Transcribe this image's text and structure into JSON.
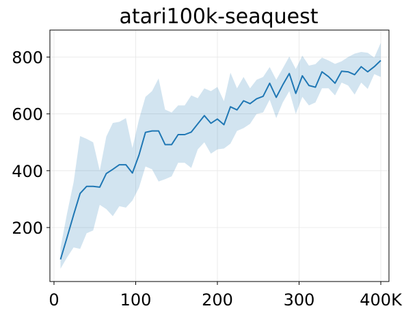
{
  "chart_data": {
    "type": "line",
    "title": "atari100k-seaquest",
    "xlabel": "",
    "ylabel": "",
    "xlim": [
      -5,
      410
    ],
    "ylim": [
      10,
      895
    ],
    "grid": true,
    "x_ticks": [
      {
        "value": 0,
        "label": "0"
      },
      {
        "value": 100,
        "label": "100"
      },
      {
        "value": 200,
        "label": "200"
      },
      {
        "value": 300,
        "label": "300"
      },
      {
        "value": 400,
        "label": "400K"
      }
    ],
    "y_ticks": [
      {
        "value": 200,
        "label": "200"
      },
      {
        "value": 400,
        "label": "400"
      },
      {
        "value": 600,
        "label": "600"
      },
      {
        "value": 800,
        "label": "800"
      }
    ],
    "colors": {
      "line": "#1f77b4",
      "band": "#1f77b4",
      "band_opacity": 0.2
    },
    "series": [
      {
        "x": [
          8,
          16,
          24,
          32,
          40,
          48,
          56,
          64,
          72,
          80,
          88,
          96,
          104,
          112,
          120,
          128,
          136,
          144,
          152,
          160,
          168,
          176,
          184,
          192,
          200,
          208,
          216,
          224,
          232,
          240,
          248,
          256,
          264,
          272,
          280,
          288,
          296,
          304,
          312,
          320,
          328,
          336,
          344,
          352,
          360,
          368,
          376,
          384,
          392,
          400
        ],
        "y": [
          88,
          165,
          245,
          320,
          345,
          345,
          342,
          390,
          405,
          421,
          421,
          392,
          455,
          535,
          540,
          540,
          492,
          492,
          527,
          527,
          536,
          565,
          594,
          567,
          582,
          562,
          625,
          614,
          646,
          636,
          653,
          662,
          708,
          658,
          702,
          742,
          672,
          734,
          700,
          694,
          748,
          731,
          708,
          750,
          748,
          738,
          766,
          748,
          766,
          788
        ],
        "lower": [
          55,
          95,
          130,
          125,
          180,
          190,
          280,
          265,
          240,
          275,
          270,
          295,
          340,
          415,
          405,
          362,
          370,
          380,
          428,
          428,
          410,
          475,
          500,
          460,
          475,
          478,
          495,
          540,
          550,
          565,
          600,
          605,
          650,
          585,
          640,
          680,
          600,
          660,
          630,
          640,
          690,
          690,
          665,
          710,
          700,
          668,
          710,
          688,
          740,
          730
        ],
        "upper": [
          128,
          250,
          360,
          522,
          512,
          500,
          400,
          520,
          568,
          572,
          585,
          480,
          580,
          660,
          680,
          725,
          615,
          605,
          630,
          630,
          665,
          655,
          690,
          680,
          695,
          645,
          745,
          690,
          730,
          690,
          720,
          730,
          765,
          720,
          760,
          802,
          758,
          805,
          770,
          775,
          798,
          788,
          776,
          785,
          800,
          812,
          818,
          815,
          798,
          850
        ]
      }
    ]
  }
}
